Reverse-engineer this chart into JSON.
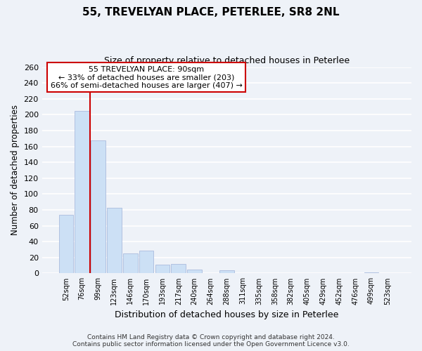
{
  "title": "55, TREVELYAN PLACE, PETERLEE, SR8 2NL",
  "subtitle": "Size of property relative to detached houses in Peterlee",
  "xlabel": "Distribution of detached houses by size in Peterlee",
  "ylabel": "Number of detached properties",
  "categories": [
    "52sqm",
    "76sqm",
    "99sqm",
    "123sqm",
    "146sqm",
    "170sqm",
    "193sqm",
    "217sqm",
    "240sqm",
    "264sqm",
    "288sqm",
    "311sqm",
    "335sqm",
    "358sqm",
    "382sqm",
    "405sqm",
    "429sqm",
    "452sqm",
    "476sqm",
    "499sqm",
    "523sqm"
  ],
  "values": [
    74,
    205,
    168,
    83,
    25,
    29,
    11,
    12,
    5,
    0,
    4,
    0,
    0,
    0,
    0,
    0,
    0,
    0,
    0,
    1,
    0
  ],
  "bar_color": "#cce0f5",
  "bar_edge_color": "#aabbdd",
  "highlight_line_color": "#cc0000",
  "annotation_title": "55 TREVELYAN PLACE: 90sqm",
  "annotation_line1": "← 33% of detached houses are smaller (203)",
  "annotation_line2": "66% of semi-detached houses are larger (407) →",
  "annotation_box_color": "#ffffff",
  "annotation_box_edge_color": "#cc0000",
  "ylim": [
    0,
    260
  ],
  "yticks": [
    0,
    20,
    40,
    60,
    80,
    100,
    120,
    140,
    160,
    180,
    200,
    220,
    240,
    260
  ],
  "footer_line1": "Contains HM Land Registry data © Crown copyright and database right 2024.",
  "footer_line2": "Contains public sector information licensed under the Open Government Licence v3.0.",
  "background_color": "#eef2f8",
  "plot_bg_color": "#eef2f8",
  "grid_color": "#ffffff"
}
